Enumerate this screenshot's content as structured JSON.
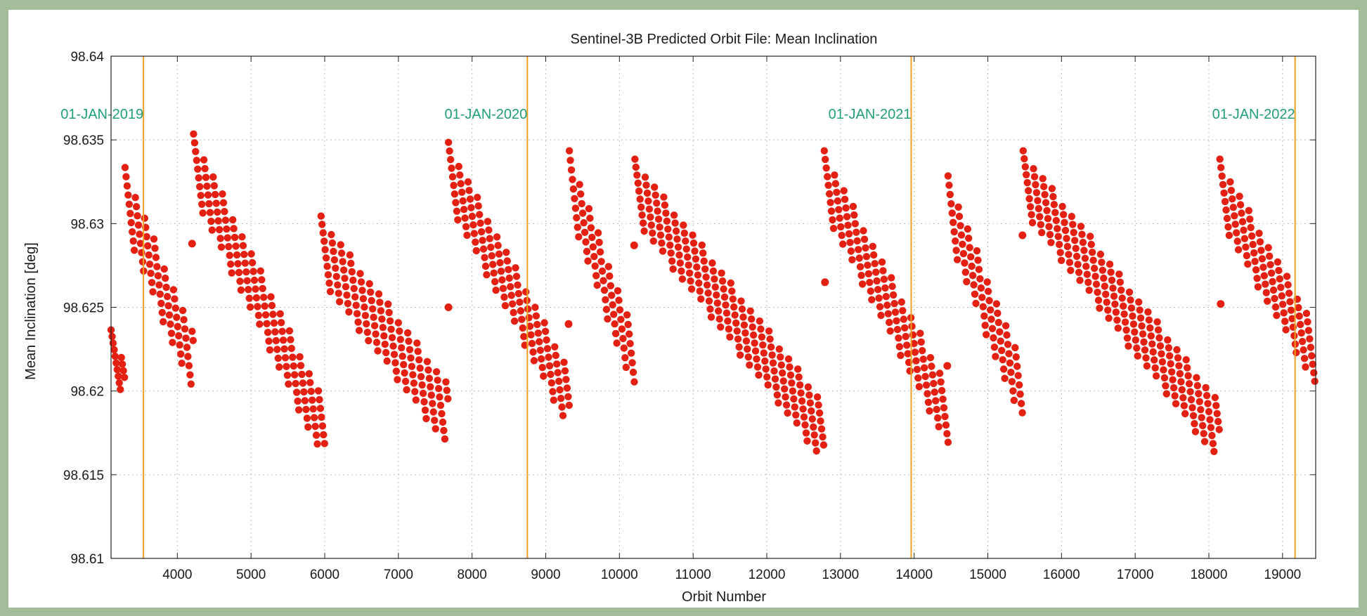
{
  "chart_data": {
    "type": "scatter",
    "title": "Sentinel-3B Predicted Orbit File: Mean Inclination",
    "xlabel": "Orbit Number",
    "ylabel": "Mean Inclination [deg]",
    "xlim": [
      3100,
      19450
    ],
    "ylim": [
      98.61,
      98.64
    ],
    "xticks": [
      "4000",
      "5000",
      "6000",
      "7000",
      "8000",
      "9000",
      "10000",
      "11000",
      "12000",
      "13000",
      "14000",
      "15000",
      "16000",
      "17000",
      "18000",
      "19000"
    ],
    "yticks": [
      "98.61",
      "98.615",
      "98.62",
      "98.625",
      "98.63",
      "98.635",
      "98.64"
    ],
    "grid": true,
    "colors": {
      "points": "#e32012",
      "year_line": "#f0a020",
      "annotation": "#1f9e7a"
    },
    "year_markers": [
      {
        "x": 3540,
        "label": "01-JAN-2019"
      },
      {
        "x": 8750,
        "label": "01-JAN-2020"
      },
      {
        "x": 13960,
        "label": "01-JAN-2021"
      },
      {
        "x": 19170,
        "label": "01-JAN-2022"
      }
    ],
    "segments": [
      {
        "x_start": 3100,
        "x_end": 3290,
        "y_start": 98.6225,
        "y_end": 98.6205,
        "spread": 0.0023
      },
      {
        "x_start": 3290,
        "x_end": 4220,
        "y_start": 98.6315,
        "y_end": 98.6215,
        "spread": 0.0037
      },
      {
        "x_start": 4220,
        "x_end": 6000,
        "y_start": 98.6335,
        "y_end": 98.6175,
        "spread": 0.0037
      },
      {
        "x_start": 5950,
        "x_end": 7680,
        "y_start": 98.6285,
        "y_end": 98.6185,
        "spread": 0.0039
      },
      {
        "x_start": 7680,
        "x_end": 9320,
        "y_start": 98.633,
        "y_end": 98.6195,
        "spread": 0.0037
      },
      {
        "x_start": 9320,
        "x_end": 10210,
        "y_start": 98.6325,
        "y_end": 98.6215,
        "spread": 0.0037
      },
      {
        "x_start": 10210,
        "x_end": 12780,
        "y_start": 98.632,
        "y_end": 98.6175,
        "spread": 0.0037
      },
      {
        "x_start": 12780,
        "x_end": 14460,
        "y_start": 98.6325,
        "y_end": 98.6185,
        "spread": 0.0037
      },
      {
        "x_start": 14460,
        "x_end": 15480,
        "y_start": 98.631,
        "y_end": 98.6195,
        "spread": 0.0037
      },
      {
        "x_start": 15480,
        "x_end": 18150,
        "y_start": 98.6325,
        "y_end": 98.6175,
        "spread": 0.0037
      },
      {
        "x_start": 18150,
        "x_end": 19450,
        "y_start": 98.632,
        "y_end": 98.622,
        "spread": 0.0037
      }
    ],
    "outliers": [
      {
        "x": 4200,
        "y": 98.6288
      },
      {
        "x": 7680,
        "y": 98.625
      },
      {
        "x": 9310,
        "y": 98.624
      },
      {
        "x": 10200,
        "y": 98.6287
      },
      {
        "x": 12790,
        "y": 98.6265
      },
      {
        "x": 14450,
        "y": 98.6215
      },
      {
        "x": 15470,
        "y": 98.6293
      },
      {
        "x": 18160,
        "y": 98.6252
      }
    ]
  }
}
